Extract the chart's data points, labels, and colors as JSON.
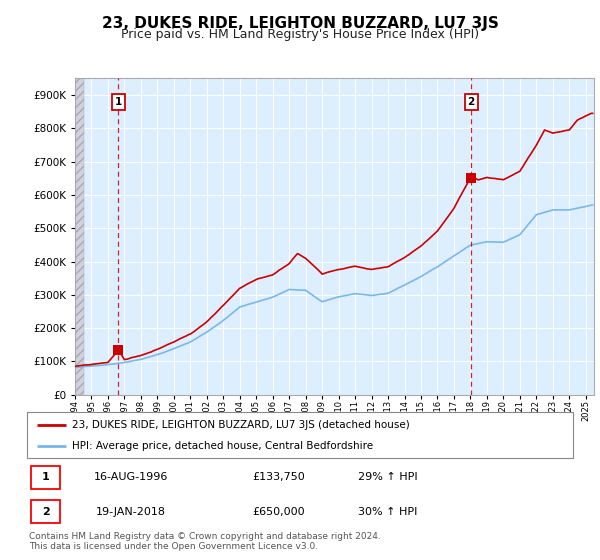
{
  "title": "23, DUKES RIDE, LEIGHTON BUZZARD, LU7 3JS",
  "subtitle": "Price paid vs. HM Land Registry's House Price Index (HPI)",
  "ylim": [
    0,
    950000
  ],
  "yticks": [
    0,
    100000,
    200000,
    300000,
    400000,
    500000,
    600000,
    700000,
    800000,
    900000
  ],
  "ytick_labels": [
    "£0",
    "£100K",
    "£200K",
    "£300K",
    "£400K",
    "£500K",
    "£600K",
    "£700K",
    "£800K",
    "£900K"
  ],
  "hpi_color": "#7ab8e8",
  "price_color": "#cc0000",
  "dashed_line_color": "#cc0000",
  "plot_bg_color": "#ddeeff",
  "hatch_color": "#bbbbcc",
  "grid_color": "#ffffff",
  "transaction1_x": 1996.625,
  "transaction1_price": 133750,
  "transaction2_x": 2018.042,
  "transaction2_price": 650000,
  "legend_entry1": "23, DUKES RIDE, LEIGHTON BUZZARD, LU7 3JS (detached house)",
  "legend_entry2": "HPI: Average price, detached house, Central Bedfordshire",
  "table_row1": [
    "1",
    "16-AUG-1996",
    "£133,750",
    "29% ↑ HPI"
  ],
  "table_row2": [
    "2",
    "19-JAN-2018",
    "£650,000",
    "30% ↑ HPI"
  ],
  "footnote": "Contains HM Land Registry data © Crown copyright and database right 2024.\nThis data is licensed under the Open Government Licence v3.0.",
  "title_fontsize": 11,
  "subtitle_fontsize": 9,
  "xmin": 1994.0,
  "xmax": 2025.5
}
